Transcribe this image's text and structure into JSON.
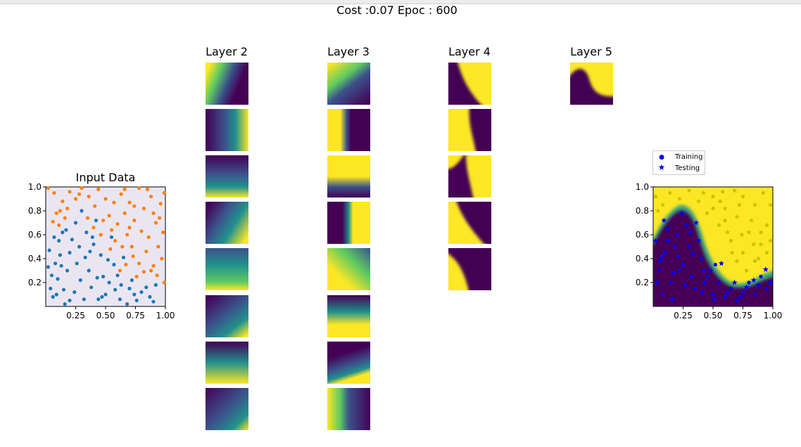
{
  "figure": {
    "title": "Cost :0.07 Epoc : 600",
    "layer_titles": [
      "Layer 2",
      "Layer 3",
      "Layer 4",
      "Layer 5"
    ]
  },
  "colors": {
    "class_a": "#1f77b4",
    "class_b": "#ff7f0e",
    "input_bg": "#eae6f1",
    "viridis_low": "#440154",
    "viridis_high": "#fde725",
    "training_marker": "#0000ff",
    "testing_marker": "#0000ff",
    "predicted_high_marker": "#c9c200"
  },
  "legend": {
    "training": "Training",
    "testing": "Testing"
  },
  "chart_data": [
    {
      "type": "scatter",
      "title": "Input Data",
      "xlim": [
        0,
        1
      ],
      "ylim": [
        0,
        1
      ],
      "x_ticks": [
        "0.25",
        "0.50",
        "0.75",
        "1.00"
      ],
      "y_ticks": [
        "0.2",
        "0.4",
        "0.6",
        "0.8",
        "1.0"
      ],
      "series": [
        {
          "points": [
            [
              0.03,
              0.47
            ],
            [
              0.05,
              0.26
            ],
            [
              0.04,
              0.15
            ],
            [
              0.08,
              0.36
            ],
            [
              0.1,
              0.23
            ],
            [
              0.12,
              0.43
            ],
            [
              0.14,
              0.62
            ],
            [
              0.06,
              0.08
            ],
            [
              0.15,
              0.14
            ],
            [
              0.18,
              0.3
            ],
            [
              0.2,
              0.45
            ],
            [
              0.22,
              0.56
            ],
            [
              0.11,
              0.55
            ],
            [
              0.17,
              0.64
            ],
            [
              0.24,
              0.12
            ],
            [
              0.26,
              0.36
            ],
            [
              0.28,
              0.5
            ],
            [
              0.3,
              0.8
            ],
            [
              0.32,
              0.06
            ],
            [
              0.34,
              0.62
            ],
            [
              0.36,
              0.3
            ],
            [
              0.38,
              0.16
            ],
            [
              0.4,
              0.52
            ],
            [
              0.42,
              0.72
            ],
            [
              0.44,
              0.06
            ],
            [
              0.46,
              0.43
            ],
            [
              0.48,
              0.25
            ],
            [
              0.5,
              0.1
            ],
            [
              0.52,
              0.39
            ],
            [
              0.55,
              0.58
            ],
            [
              0.58,
              0.14
            ],
            [
              0.6,
              0.26
            ],
            [
              0.62,
              0.06
            ],
            [
              0.65,
              0.41
            ],
            [
              0.68,
              0.02
            ],
            [
              0.7,
              0.15
            ],
            [
              0.72,
              0.22
            ],
            [
              0.76,
              0.05
            ],
            [
              0.8,
              0.12
            ],
            [
              0.87,
              0.08
            ],
            [
              0.92,
              0.18
            ],
            [
              0.02,
              0.33
            ],
            [
              0.09,
              0.1
            ],
            [
              0.2,
              0.05
            ],
            [
              0.25,
              0.7
            ],
            [
              0.33,
              0.41
            ],
            [
              0.37,
              0.46
            ],
            [
              0.43,
              0.24
            ],
            [
              0.57,
              0.35
            ],
            [
              0.07,
              0.58
            ],
            [
              0.13,
              0.34
            ],
            [
              0.29,
              0.22
            ],
            [
              0.39,
              0.58
            ],
            [
              0.53,
              0.2
            ],
            [
              0.47,
              0.08
            ],
            [
              0.63,
              0.18
            ],
            [
              0.74,
              0.1
            ],
            [
              0.84,
              0.16
            ],
            [
              0.9,
              0.04
            ],
            [
              0.16,
              0.02
            ]
          ]
        },
        {
          "points": [
            [
              0.07,
              0.95
            ],
            [
              0.09,
              0.78
            ],
            [
              0.11,
              0.68
            ],
            [
              0.14,
              0.88
            ],
            [
              0.2,
              0.96
            ],
            [
              0.25,
              0.9
            ],
            [
              0.3,
              0.99
            ],
            [
              0.36,
              0.92
            ],
            [
              0.41,
              0.84
            ],
            [
              0.44,
              0.98
            ],
            [
              0.5,
              0.9
            ],
            [
              0.53,
              0.76
            ],
            [
              0.57,
              0.87
            ],
            [
              0.6,
              0.69
            ],
            [
              0.63,
              0.94
            ],
            [
              0.66,
              0.78
            ],
            [
              0.68,
              0.6
            ],
            [
              0.7,
              0.87
            ],
            [
              0.72,
              0.5
            ],
            [
              0.74,
              0.72
            ],
            [
              0.78,
              0.99
            ],
            [
              0.8,
              0.63
            ],
            [
              0.82,
              0.82
            ],
            [
              0.84,
              0.46
            ],
            [
              0.86,
              0.58
            ],
            [
              0.88,
              0.92
            ],
            [
              0.9,
              0.34
            ],
            [
              0.92,
              0.7
            ],
            [
              0.94,
              0.5
            ],
            [
              0.96,
              0.86
            ],
            [
              0.98,
              0.62
            ],
            [
              0.97,
              0.4
            ],
            [
              0.93,
              0.26
            ],
            [
              0.88,
              0.3
            ],
            [
              0.82,
              0.29
            ],
            [
              0.78,
              0.36
            ],
            [
              0.73,
              0.42
            ],
            [
              0.67,
              0.35
            ],
            [
              0.64,
              0.5
            ],
            [
              0.58,
              0.55
            ],
            [
              0.55,
              0.64
            ],
            [
              0.48,
              0.72
            ],
            [
              0.35,
              0.74
            ],
            [
              0.16,
              0.74
            ],
            [
              0.12,
              0.8
            ],
            [
              0.06,
              0.71
            ],
            [
              0.62,
              0.3
            ],
            [
              0.76,
              0.25
            ],
            [
              0.99,
              0.2
            ],
            [
              0.95,
              0.74
            ],
            [
              0.85,
              0.98
            ],
            [
              0.66,
              0.98
            ],
            [
              0.74,
              0.84
            ],
            [
              0.02,
              0.99
            ],
            [
              0.18,
              0.82
            ],
            [
              0.46,
              0.6
            ],
            [
              0.54,
              0.48
            ],
            [
              0.7,
              0.66
            ],
            [
              0.9,
              0.78
            ],
            [
              0.99,
              0.95
            ],
            [
              0.28,
              0.94
            ],
            [
              0.4,
              0.66
            ]
          ]
        }
      ]
    },
    {
      "type": "heatmap",
      "title": "",
      "xlim": [
        0,
        1
      ],
      "ylim": [
        0,
        1
      ],
      "x_ticks": [
        "0.25",
        "0.50",
        "0.75",
        "1.00"
      ],
      "y_ticks": [
        "0.2",
        "0.4",
        "0.6",
        "0.8",
        "1.0"
      ],
      "series": [
        {
          "name": "Training",
          "points": [
            [
              0.05,
              0.3
            ],
            [
              0.1,
              0.45
            ],
            [
              0.15,
              0.2
            ],
            [
              0.2,
              0.6
            ],
            [
              0.25,
              0.35
            ],
            [
              0.3,
              0.5
            ],
            [
              0.35,
              0.15
            ],
            [
              0.4,
              0.4
            ],
            [
              0.45,
              0.25
            ],
            [
              0.5,
              0.1
            ],
            [
              0.55,
              0.2
            ],
            [
              0.6,
              0.08
            ],
            [
              0.65,
              0.15
            ],
            [
              0.7,
              0.05
            ],
            [
              0.75,
              0.12
            ],
            [
              0.8,
              0.2
            ],
            [
              0.85,
              0.1
            ],
            [
              0.9,
              0.25
            ],
            [
              0.95,
              0.15
            ],
            [
              0.08,
              0.1
            ],
            [
              0.18,
              0.5
            ],
            [
              0.28,
              0.68
            ],
            [
              0.38,
              0.55
            ],
            [
              0.12,
              0.65
            ],
            [
              0.22,
              0.3
            ],
            [
              0.32,
              0.25
            ],
            [
              0.42,
              0.3
            ],
            [
              0.52,
              0.35
            ],
            [
              0.02,
              0.55
            ],
            [
              0.07,
              0.42
            ]
          ]
        },
        {
          "name": "Testing",
          "points": [
            [
              0.03,
              0.2
            ],
            [
              0.06,
              0.38
            ],
            [
              0.12,
              0.55
            ],
            [
              0.17,
              0.28
            ],
            [
              0.21,
              0.42
            ],
            [
              0.27,
              0.18
            ],
            [
              0.31,
              0.62
            ],
            [
              0.36,
              0.7
            ],
            [
              0.43,
              0.2
            ],
            [
              0.48,
              0.3
            ],
            [
              0.57,
              0.36
            ],
            [
              0.62,
              0.12
            ],
            [
              0.68,
              0.2
            ],
            [
              0.73,
              0.08
            ],
            [
              0.78,
              0.16
            ],
            [
              0.84,
              0.22
            ],
            [
              0.88,
              0.18
            ],
            [
              0.94,
              0.31
            ],
            [
              0.98,
              0.2
            ],
            [
              0.09,
              0.72
            ],
            [
              0.24,
              0.78
            ],
            [
              0.33,
              0.44
            ],
            [
              0.41,
              0.12
            ],
            [
              0.51,
              0.06
            ],
            [
              0.16,
              0.06
            ]
          ]
        },
        {
          "name": "",
          "points": [
            [
              0.08,
              0.85
            ],
            [
              0.14,
              0.95
            ],
            [
              0.22,
              0.9
            ],
            [
              0.3,
              0.97
            ],
            [
              0.38,
              0.88
            ],
            [
              0.45,
              0.78
            ],
            [
              0.5,
              0.92
            ],
            [
              0.55,
              0.68
            ],
            [
              0.6,
              0.82
            ],
            [
              0.65,
              0.55
            ],
            [
              0.7,
              0.75
            ],
            [
              0.75,
              0.45
            ],
            [
              0.8,
              0.62
            ],
            [
              0.85,
              0.38
            ],
            [
              0.9,
              0.52
            ],
            [
              0.95,
              0.68
            ],
            [
              0.98,
              0.85
            ],
            [
              0.92,
              0.95
            ],
            [
              0.85,
              0.85
            ],
            [
              0.75,
              0.92
            ],
            [
              0.68,
              0.97
            ],
            [
              0.58,
              0.96
            ],
            [
              0.7,
              0.38
            ],
            [
              0.78,
              0.3
            ],
            [
              0.88,
              0.4
            ],
            [
              0.95,
              0.45
            ],
            [
              0.62,
              0.62
            ],
            [
              0.72,
              0.85
            ],
            [
              0.82,
              0.72
            ],
            [
              0.5,
              0.82
            ],
            [
              0.42,
              0.95
            ],
            [
              0.02,
              0.92
            ],
            [
              0.04,
              0.8
            ],
            [
              0.9,
              0.62
            ],
            [
              0.98,
              0.55
            ],
            [
              0.66,
              0.45
            ],
            [
              0.84,
              0.52
            ],
            [
              0.6,
              0.72
            ],
            [
              0.74,
              0.6
            ],
            [
              0.56,
              0.88
            ]
          ]
        }
      ]
    }
  ]
}
